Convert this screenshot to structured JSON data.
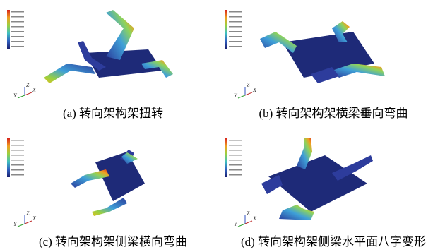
{
  "figure": {
    "panels": [
      {
        "caption": "(a) 转向架构架扭转",
        "axes": [
          "Z",
          "Y",
          "X"
        ]
      },
      {
        "caption": "(b) 转向架构架横梁垂向弯曲",
        "axes": [
          "Z",
          "Y",
          "X"
        ]
      },
      {
        "caption": "(c) 转向架构架侧梁横向弯曲",
        "axes": [
          "Z",
          "Y",
          "X"
        ]
      },
      {
        "caption": "(d) 转向架构架侧梁水平面八字变形",
        "axes": [
          "Z",
          "Y",
          "X"
        ]
      }
    ]
  }
}
